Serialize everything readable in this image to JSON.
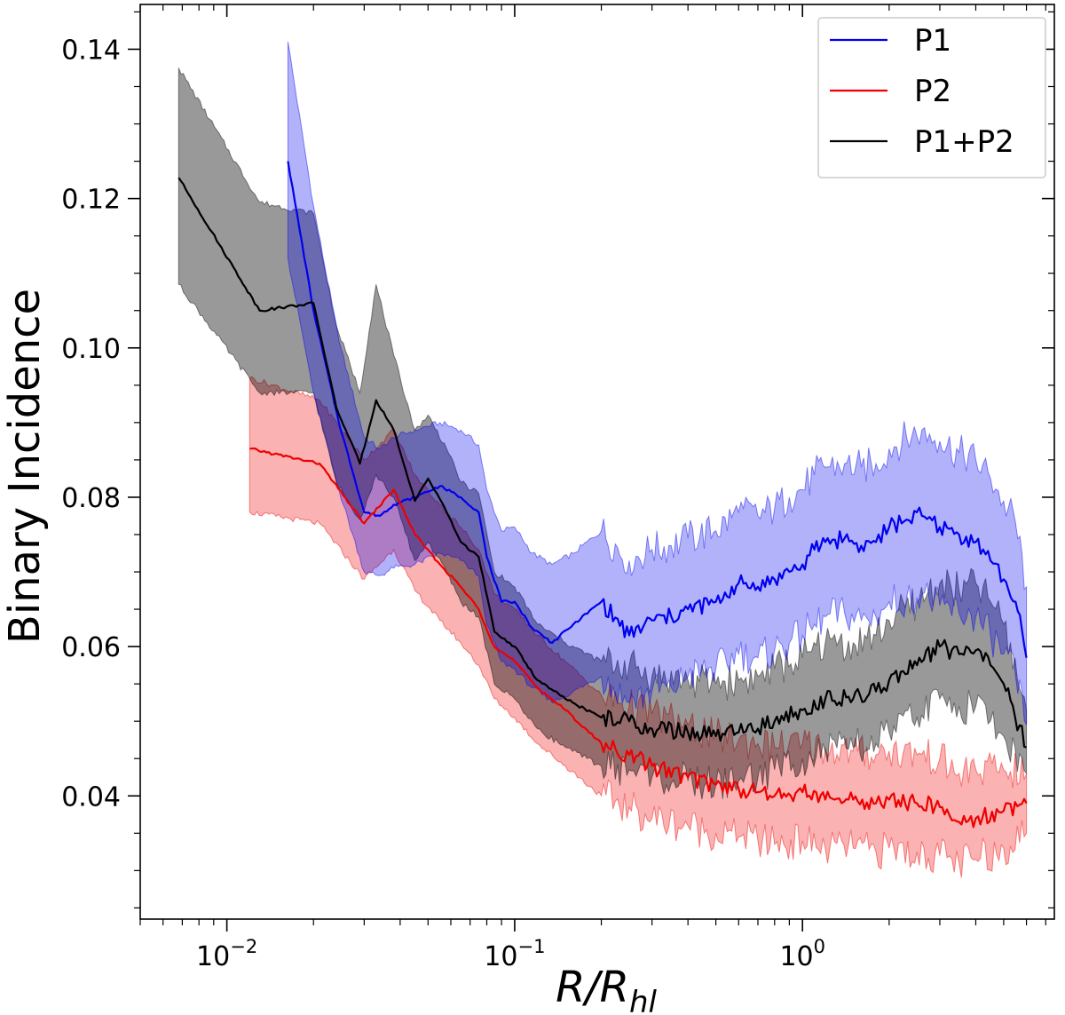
{
  "chart_data": {
    "type": "line",
    "ylabel": "Binary Incidence",
    "xlabel_main": "R/R",
    "xlabel_sub": "hl",
    "xscale": "log",
    "xlim": [
      0.005,
      7.5
    ],
    "ylim": [
      0.0235,
      0.146
    ],
    "yticks": [
      0.04,
      0.06,
      0.08,
      0.1,
      0.12,
      0.14
    ],
    "yticklabels": [
      "0.04",
      "0.06",
      "0.08",
      "0.10",
      "0.12",
      "0.14"
    ],
    "xticks": [
      0.01,
      0.1,
      1
    ],
    "xtick_base": [
      "10",
      "10",
      "10"
    ],
    "xtick_exp": [
      "−2",
      "−1",
      "0"
    ],
    "legend_position": "top-right",
    "series": [
      {
        "name": "P1",
        "color": "#0000ee",
        "x": [
          0.0163,
          0.02,
          0.0245,
          0.03,
          0.034,
          0.038,
          0.045,
          0.055,
          0.065,
          0.075,
          0.08,
          0.09,
          0.1,
          0.115,
          0.135,
          0.16,
          0.2,
          0.25,
          0.3,
          0.35,
          0.4,
          0.5,
          0.6,
          0.7,
          0.8,
          0.9,
          1.0,
          1.1,
          1.2,
          1.4,
          1.6,
          1.8,
          2.0,
          2.3,
          2.6,
          3.0,
          3.5,
          4.0,
          4.5,
          5.0,
          5.5,
          6.0
        ],
        "y": [
          0.125,
          0.105,
          0.09,
          0.078,
          0.0775,
          0.079,
          0.08,
          0.0815,
          0.08,
          0.078,
          0.072,
          0.066,
          0.066,
          0.0625,
          0.0605,
          0.063,
          0.066,
          0.0615,
          0.0635,
          0.064,
          0.065,
          0.066,
          0.0685,
          0.068,
          0.069,
          0.07,
          0.071,
          0.073,
          0.074,
          0.0745,
          0.0735,
          0.074,
          0.076,
          0.077,
          0.0775,
          0.076,
          0.075,
          0.074,
          0.0715,
          0.069,
          0.066,
          0.0585
        ],
        "lower": [
          0.112,
          0.094,
          0.081,
          0.07,
          0.0695,
          0.0705,
          0.071,
          0.0725,
          0.0715,
          0.0695,
          0.063,
          0.058,
          0.057,
          0.0545,
          0.0525,
          0.054,
          0.056,
          0.0525,
          0.054,
          0.0545,
          0.056,
          0.057,
          0.059,
          0.0585,
          0.0595,
          0.0605,
          0.0615,
          0.063,
          0.064,
          0.0645,
          0.0635,
          0.064,
          0.066,
          0.0665,
          0.067,
          0.0655,
          0.0645,
          0.064,
          0.0615,
          0.059,
          0.056,
          0.0495
        ],
        "upper": [
          0.141,
          0.119,
          0.101,
          0.088,
          0.0865,
          0.088,
          0.089,
          0.09,
          0.089,
          0.087,
          0.081,
          0.0755,
          0.076,
          0.0725,
          0.071,
          0.0725,
          0.0755,
          0.0715,
          0.073,
          0.0735,
          0.0745,
          0.0755,
          0.078,
          0.0775,
          0.0785,
          0.08,
          0.081,
          0.083,
          0.084,
          0.0845,
          0.084,
          0.0845,
          0.0865,
          0.088,
          0.089,
          0.0875,
          0.086,
          0.085,
          0.0825,
          0.0795,
          0.0765,
          0.068
        ]
      },
      {
        "name": "P2",
        "color": "#ee0000",
        "x": [
          0.012,
          0.021,
          0.03,
          0.038,
          0.045,
          0.055,
          0.065,
          0.075,
          0.085,
          0.1,
          0.12,
          0.15,
          0.2,
          0.25,
          0.3,
          0.4,
          0.5,
          0.6,
          0.7,
          0.8,
          1.0,
          1.2,
          1.5,
          1.8,
          2.0,
          2.5,
          3.0,
          3.5,
          4.0,
          5.0,
          6.0
        ],
        "y": [
          0.0865,
          0.0845,
          0.0765,
          0.081,
          0.075,
          0.071,
          0.068,
          0.065,
          0.06,
          0.058,
          0.0545,
          0.0515,
          0.047,
          0.0455,
          0.044,
          0.0425,
          0.0415,
          0.041,
          0.0405,
          0.04,
          0.0405,
          0.0395,
          0.0395,
          0.039,
          0.0395,
          0.039,
          0.0385,
          0.0365,
          0.037,
          0.038,
          0.039
        ],
        "lower": [
          0.078,
          0.0765,
          0.069,
          0.073,
          0.0675,
          0.0635,
          0.0605,
          0.0575,
          0.053,
          0.0505,
          0.047,
          0.044,
          0.04,
          0.0385,
          0.037,
          0.036,
          0.035,
          0.0345,
          0.034,
          0.0335,
          0.034,
          0.033,
          0.033,
          0.0325,
          0.033,
          0.0325,
          0.032,
          0.031,
          0.0315,
          0.033,
          0.035
        ],
        "upper": [
          0.096,
          0.093,
          0.085,
          0.089,
          0.083,
          0.079,
          0.076,
          0.073,
          0.067,
          0.065,
          0.0615,
          0.058,
          0.0535,
          0.052,
          0.051,
          0.0495,
          0.048,
          0.0475,
          0.047,
          0.0465,
          0.047,
          0.0465,
          0.046,
          0.0455,
          0.046,
          0.0455,
          0.045,
          0.043,
          0.0435,
          0.0435,
          0.043
        ]
      },
      {
        "name": "P1+P2",
        "color": "#000000",
        "x": [
          0.0068,
          0.013,
          0.02,
          0.024,
          0.029,
          0.033,
          0.038,
          0.045,
          0.05,
          0.058,
          0.065,
          0.075,
          0.085,
          0.1,
          0.12,
          0.15,
          0.2,
          0.25,
          0.3,
          0.4,
          0.5,
          0.6,
          0.7,
          0.8,
          1.0,
          1.2,
          1.5,
          1.8,
          2.0,
          2.5,
          3.0,
          3.5,
          4.0,
          4.5,
          5.0,
          6.0
        ],
        "y": [
          0.1228,
          0.105,
          0.106,
          0.092,
          0.0845,
          0.093,
          0.089,
          0.0795,
          0.0825,
          0.078,
          0.074,
          0.072,
          0.062,
          0.06,
          0.0555,
          0.053,
          0.0505,
          0.05,
          0.049,
          0.0485,
          0.048,
          0.0485,
          0.049,
          0.05,
          0.0515,
          0.053,
          0.053,
          0.054,
          0.0555,
          0.0575,
          0.06,
          0.059,
          0.0595,
          0.0575,
          0.055,
          0.0465
        ],
        "lower": [
          0.1085,
          0.094,
          0.094,
          0.082,
          0.077,
          0.083,
          0.08,
          0.0715,
          0.074,
          0.07,
          0.066,
          0.064,
          0.055,
          0.053,
          0.049,
          0.0465,
          0.044,
          0.0435,
          0.0425,
          0.042,
          0.0415,
          0.042,
          0.0425,
          0.0435,
          0.045,
          0.046,
          0.0465,
          0.047,
          0.0485,
          0.0505,
          0.053,
          0.052,
          0.052,
          0.05,
          0.048,
          0.043
        ],
        "upper": [
          0.1375,
          0.1195,
          0.118,
          0.103,
          0.094,
          0.1085,
          0.099,
          0.089,
          0.091,
          0.0865,
          0.082,
          0.0805,
          0.07,
          0.068,
          0.063,
          0.0605,
          0.058,
          0.0575,
          0.056,
          0.0555,
          0.055,
          0.0555,
          0.056,
          0.057,
          0.0585,
          0.0605,
          0.0605,
          0.0615,
          0.0635,
          0.066,
          0.0685,
          0.0675,
          0.0685,
          0.066,
          0.063,
          0.0515
        ]
      }
    ]
  }
}
